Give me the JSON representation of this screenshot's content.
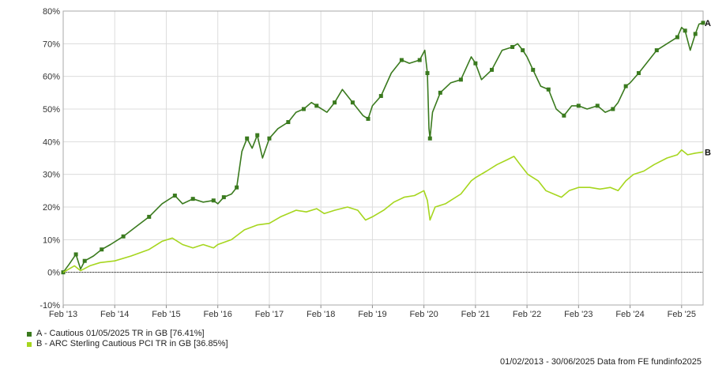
{
  "chart_data": {
    "type": "line",
    "y_axis": {
      "min": -10,
      "max": 80,
      "step": 10,
      "tick_labels": [
        "-10%",
        "0%",
        "10%",
        "20%",
        "30%",
        "40%",
        "50%",
        "60%",
        "70%",
        "80%"
      ]
    },
    "x_axis": {
      "start_year": 2013.083,
      "end_year": 2025.5,
      "tick_labels": [
        "Feb '13",
        "Feb '14",
        "Feb '15",
        "Feb '16",
        "Feb '17",
        "Feb '18",
        "Feb '19",
        "Feb '20",
        "Feb '21",
        "Feb '22",
        "Feb '23",
        "Feb '24",
        "Feb '25"
      ],
      "tick_years": [
        2013.083,
        2014.083,
        2015.083,
        2016.083,
        2017.083,
        2018.083,
        2019.083,
        2020.083,
        2021.083,
        2022.083,
        2023.083,
        2024.083,
        2025.083
      ]
    },
    "grid": true,
    "zero_line": true,
    "series": [
      {
        "name": "A - Cautious 01/05/2025 TR in GB [76.41%]",
        "end_label": "A",
        "color": "#3a7a1e",
        "points": [
          [
            2013.083,
            0
          ],
          [
            2013.2,
            2.5
          ],
          [
            2013.33,
            5.5
          ],
          [
            2013.42,
            1
          ],
          [
            2013.5,
            3.5
          ],
          [
            2013.67,
            5
          ],
          [
            2013.83,
            7
          ],
          [
            2014.0,
            8.5
          ],
          [
            2014.25,
            11
          ],
          [
            2014.5,
            14
          ],
          [
            2014.75,
            17
          ],
          [
            2015.0,
            21
          ],
          [
            2015.25,
            23.5
          ],
          [
            2015.4,
            21
          ],
          [
            2015.6,
            22.5
          ],
          [
            2015.8,
            21.5
          ],
          [
            2016.0,
            22
          ],
          [
            2016.083,
            21
          ],
          [
            2016.2,
            23
          ],
          [
            2016.35,
            24
          ],
          [
            2016.45,
            26
          ],
          [
            2016.55,
            37
          ],
          [
            2016.65,
            41
          ],
          [
            2016.75,
            38
          ],
          [
            2016.85,
            42
          ],
          [
            2016.95,
            35
          ],
          [
            2017.083,
            41
          ],
          [
            2017.25,
            44
          ],
          [
            2017.45,
            46
          ],
          [
            2017.6,
            49
          ],
          [
            2017.75,
            50
          ],
          [
            2017.9,
            52
          ],
          [
            2018.0,
            51
          ],
          [
            2018.2,
            49
          ],
          [
            2018.35,
            52
          ],
          [
            2018.5,
            56
          ],
          [
            2018.7,
            52
          ],
          [
            2018.9,
            48
          ],
          [
            2019.0,
            47
          ],
          [
            2019.083,
            51
          ],
          [
            2019.25,
            54
          ],
          [
            2019.45,
            61
          ],
          [
            2019.65,
            65
          ],
          [
            2019.8,
            64
          ],
          [
            2020.0,
            65
          ],
          [
            2020.1,
            68
          ],
          [
            2020.15,
            61
          ],
          [
            2020.18,
            44
          ],
          [
            2020.2,
            41
          ],
          [
            2020.25,
            49
          ],
          [
            2020.4,
            55
          ],
          [
            2020.6,
            58
          ],
          [
            2020.8,
            59
          ],
          [
            2021.0,
            66
          ],
          [
            2021.083,
            64
          ],
          [
            2021.2,
            59
          ],
          [
            2021.4,
            62
          ],
          [
            2021.6,
            68
          ],
          [
            2021.8,
            69
          ],
          [
            2021.9,
            70
          ],
          [
            2022.0,
            68
          ],
          [
            2022.083,
            66
          ],
          [
            2022.2,
            62
          ],
          [
            2022.35,
            57
          ],
          [
            2022.5,
            56
          ],
          [
            2022.65,
            50
          ],
          [
            2022.8,
            48
          ],
          [
            2022.95,
            51
          ],
          [
            2023.083,
            51
          ],
          [
            2023.25,
            50
          ],
          [
            2023.45,
            51
          ],
          [
            2023.6,
            49
          ],
          [
            2023.75,
            50
          ],
          [
            2023.85,
            52
          ],
          [
            2024.0,
            57
          ],
          [
            2024.083,
            58
          ],
          [
            2024.25,
            61
          ],
          [
            2024.45,
            65
          ],
          [
            2024.6,
            68
          ],
          [
            2024.8,
            70
          ],
          [
            2025.0,
            72
          ],
          [
            2025.083,
            75
          ],
          [
            2025.15,
            74
          ],
          [
            2025.25,
            68
          ],
          [
            2025.35,
            73
          ],
          [
            2025.42,
            76
          ],
          [
            2025.5,
            76.4
          ]
        ]
      },
      {
        "name": "B - ARC Sterling Cautious PCI TR in GB [36.85%]",
        "end_label": "B",
        "color": "#a6d61e",
        "points": [
          [
            2013.083,
            0
          ],
          [
            2013.3,
            2
          ],
          [
            2013.42,
            0.5
          ],
          [
            2013.6,
            2
          ],
          [
            2013.8,
            3
          ],
          [
            2014.083,
            3.5
          ],
          [
            2014.4,
            5
          ],
          [
            2014.75,
            7
          ],
          [
            2015.0,
            9.5
          ],
          [
            2015.2,
            10.5
          ],
          [
            2015.4,
            8.5
          ],
          [
            2015.6,
            7.5
          ],
          [
            2015.8,
            8.5
          ],
          [
            2016.0,
            7.5
          ],
          [
            2016.083,
            8.5
          ],
          [
            2016.35,
            10
          ],
          [
            2016.6,
            13
          ],
          [
            2016.85,
            14.5
          ],
          [
            2017.083,
            15
          ],
          [
            2017.3,
            17
          ],
          [
            2017.6,
            19
          ],
          [
            2017.8,
            18.5
          ],
          [
            2018.0,
            19.5
          ],
          [
            2018.15,
            18
          ],
          [
            2018.35,
            19
          ],
          [
            2018.6,
            20
          ],
          [
            2018.8,
            19
          ],
          [
            2018.95,
            16
          ],
          [
            2019.083,
            17
          ],
          [
            2019.3,
            19
          ],
          [
            2019.5,
            21.5
          ],
          [
            2019.7,
            23
          ],
          [
            2019.9,
            23.5
          ],
          [
            2020.083,
            25
          ],
          [
            2020.15,
            22
          ],
          [
            2020.2,
            16
          ],
          [
            2020.3,
            20
          ],
          [
            2020.5,
            21
          ],
          [
            2020.8,
            24
          ],
          [
            2021.0,
            28
          ],
          [
            2021.083,
            29
          ],
          [
            2021.3,
            31
          ],
          [
            2021.5,
            33
          ],
          [
            2021.7,
            34.5
          ],
          [
            2021.83,
            35.5
          ],
          [
            2021.95,
            33
          ],
          [
            2022.1,
            30
          ],
          [
            2022.3,
            28
          ],
          [
            2022.45,
            25
          ],
          [
            2022.6,
            24
          ],
          [
            2022.75,
            23
          ],
          [
            2022.9,
            25
          ],
          [
            2023.083,
            26
          ],
          [
            2023.3,
            26
          ],
          [
            2023.5,
            25.5
          ],
          [
            2023.7,
            26
          ],
          [
            2023.85,
            25
          ],
          [
            2024.0,
            28
          ],
          [
            2024.15,
            30
          ],
          [
            2024.35,
            31
          ],
          [
            2024.55,
            33
          ],
          [
            2024.8,
            35
          ],
          [
            2025.0,
            36
          ],
          [
            2025.083,
            37.5
          ],
          [
            2025.2,
            36
          ],
          [
            2025.35,
            36.5
          ],
          [
            2025.5,
            36.85
          ]
        ]
      }
    ]
  },
  "legend": {
    "a_label": "A - Cautious 01/05/2025 TR in GB [76.41%]",
    "b_label": "B - ARC Sterling Cautious PCI TR in GB [36.85%]",
    "a_color": "#3a7a1e",
    "b_color": "#a6d61e"
  },
  "footer": "01/02/2013 - 30/06/2025 Data from FE fundinfo2025"
}
